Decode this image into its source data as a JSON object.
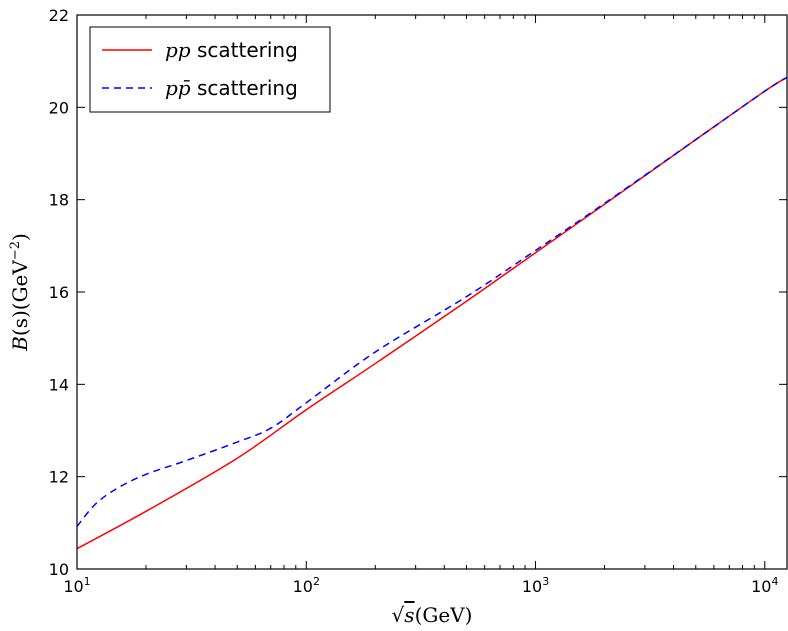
{
  "chart_data": {
    "type": "line",
    "x_scale": "log",
    "xlim": [
      10,
      12500
    ],
    "ylim": [
      10,
      22
    ],
    "yticks": [
      10,
      12,
      14,
      16,
      18,
      20,
      22
    ],
    "xticks": [
      {
        "value": 10,
        "base": "10",
        "exp": "1"
      },
      {
        "value": 100,
        "base": "10",
        "exp": "2"
      },
      {
        "value": 1000,
        "base": "10",
        "exp": "3"
      },
      {
        "value": 10000,
        "base": "10",
        "exp": "4"
      }
    ],
    "xlabel": {
      "sqrt_symbol": "√",
      "var": "s",
      "unit": "(GeV)"
    },
    "ylabel": {
      "func": "B",
      "arg": "(s)",
      "unit": "(GeV",
      "exp": "−2",
      "close": ")"
    },
    "legend_position": "top-left",
    "series": [
      {
        "name_math": "pp",
        "name_text": " scattering",
        "color": "#ff0000",
        "dash": "solid",
        "x": [
          10,
          20,
          50,
          100,
          200,
          500,
          1000,
          2000,
          5000,
          10000,
          12500
        ],
        "y": [
          10.44,
          11.25,
          12.4,
          13.45,
          14.45,
          15.8,
          16.85,
          17.9,
          19.3,
          20.35,
          20.65
        ]
      },
      {
        "name_math": "pp̄",
        "name_text": " scattering",
        "color": "#0000ff",
        "dash": "dashed",
        "x": [
          10,
          12,
          15,
          20,
          30,
          50,
          70,
          100,
          200,
          500,
          1000,
          2000,
          5000,
          10000,
          12500
        ],
        "y": [
          10.92,
          11.4,
          11.75,
          12.05,
          12.35,
          12.75,
          13.05,
          13.6,
          14.7,
          15.9,
          16.9,
          17.92,
          19.3,
          20.35,
          20.65
        ]
      }
    ]
  }
}
